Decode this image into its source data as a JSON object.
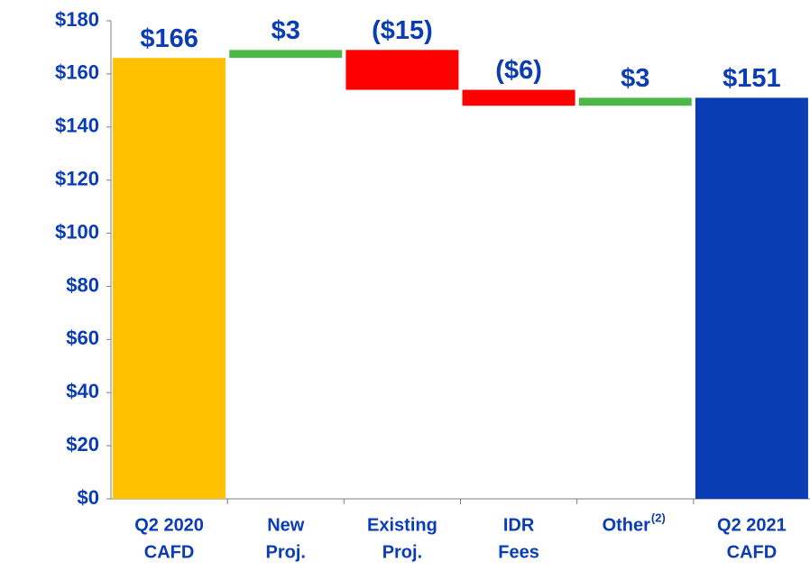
{
  "chart_data": {
    "type": "waterfall",
    "categories": [
      [
        "Q2 2020",
        "CAFD"
      ],
      [
        "New",
        "Proj."
      ],
      [
        "Existing",
        "Proj."
      ],
      [
        "IDR",
        "Fees"
      ],
      [
        "Other"
      ],
      [
        "Q2 2021",
        "CAFD"
      ]
    ],
    "category_superscripts": [
      null,
      null,
      null,
      null,
      "(2)",
      null
    ],
    "values": [
      166,
      3,
      -15,
      -6,
      3,
      151
    ],
    "value_labels": [
      "$166",
      "$3",
      "($15)",
      "($6)",
      "$3",
      "$151"
    ],
    "kinds": [
      "total",
      "delta",
      "delta",
      "delta",
      "delta",
      "total"
    ],
    "colors": {
      "start": "#FFC000",
      "end": "#0A3CB4",
      "increase": "#4DB848",
      "decrease": "#FF0000"
    },
    "ylim": [
      0,
      180
    ],
    "yticks": [
      {
        "value": 0,
        "label": "$0"
      },
      {
        "value": 20,
        "label": "$20"
      },
      {
        "value": 40,
        "label": "$40"
      },
      {
        "value": 60,
        "label": "$60"
      },
      {
        "value": 80,
        "label": "$80"
      },
      {
        "value": 100,
        "label": "$100"
      },
      {
        "value": 120,
        "label": "$120"
      },
      {
        "value": 140,
        "label": "$140"
      },
      {
        "value": 160,
        "label": "$160"
      },
      {
        "value": 180,
        "label": "$180"
      }
    ]
  }
}
